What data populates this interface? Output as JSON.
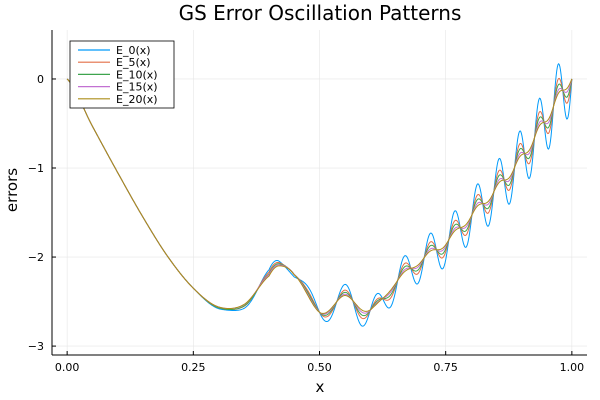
{
  "chart_data": {
    "type": "line",
    "title": "GS Error Oscillation Patterns",
    "xlabel": "x",
    "ylabel": "errors",
    "xlim": [
      -0.03,
      1.03
    ],
    "ylim": [
      -3.1,
      0.55
    ],
    "xticks": [
      0.0,
      0.25,
      0.5,
      0.75,
      1.0
    ],
    "xtick_labels": [
      "0.00",
      "0.25",
      "0.50",
      "0.75",
      "1.00"
    ],
    "yticks": [
      -3,
      -2,
      -1,
      0
    ],
    "ytick_labels": [
      "−3",
      "−2",
      "−1",
      "0"
    ],
    "grid": true,
    "legend_position": "top-left",
    "x": [
      0.0,
      0.05,
      0.1,
      0.15,
      0.2,
      0.25,
      0.3,
      0.35,
      0.4,
      0.42,
      0.45,
      0.5,
      0.55,
      0.6,
      0.65,
      0.7,
      0.75,
      0.8,
      0.85,
      0.9,
      0.95,
      1.0
    ],
    "series": [
      {
        "name": "E_0(x)",
        "color": "#009AFA",
        "smooth": [
          0.0,
          -0.53,
          -1.05,
          -1.55,
          -2.0,
          -2.35,
          -2.58,
          -2.55,
          -2.2,
          -2.06,
          -2.15,
          -2.62,
          -2.45,
          -2.65,
          -2.3,
          -2.05,
          -1.85,
          -1.55,
          -1.25,
          -0.9,
          -0.45,
          0.0
        ],
        "amp": 0.4
      },
      {
        "name": "E_5(x)",
        "color": "#E36F47",
        "smooth": [
          0.0,
          -0.53,
          -1.05,
          -1.55,
          -2.0,
          -2.35,
          -2.57,
          -2.54,
          -2.2,
          -2.07,
          -2.16,
          -2.62,
          -2.45,
          -2.63,
          -2.29,
          -2.04,
          -1.84,
          -1.54,
          -1.24,
          -0.89,
          -0.44,
          0.0
        ],
        "amp": 0.22
      },
      {
        "name": "E_10(x)",
        "color": "#3EA44E",
        "smooth": [
          0.0,
          -0.53,
          -1.05,
          -1.55,
          -2.0,
          -2.35,
          -2.57,
          -2.54,
          -2.21,
          -2.08,
          -2.17,
          -2.62,
          -2.45,
          -2.62,
          -2.29,
          -2.04,
          -1.84,
          -1.54,
          -1.24,
          -0.89,
          -0.44,
          0.0
        ],
        "amp": 0.15
      },
      {
        "name": "E_15(x)",
        "color": "#C271D2",
        "smooth": [
          0.0,
          -0.53,
          -1.05,
          -1.55,
          -2.0,
          -2.35,
          -2.56,
          -2.53,
          -2.21,
          -2.09,
          -2.18,
          -2.62,
          -2.45,
          -2.61,
          -2.29,
          -2.04,
          -1.84,
          -1.54,
          -1.24,
          -0.89,
          -0.44,
          0.0
        ],
        "amp": 0.09
      },
      {
        "name": "E_20(x)",
        "color": "#AC8D18",
        "smooth": [
          0.0,
          -0.53,
          -1.05,
          -1.55,
          -2.0,
          -2.35,
          -2.56,
          -2.53,
          -2.22,
          -2.1,
          -2.19,
          -2.62,
          -2.45,
          -2.6,
          -2.29,
          -2.04,
          -1.84,
          -1.54,
          -1.24,
          -0.89,
          -0.44,
          0.0
        ],
        "amp": 0.05
      }
    ]
  }
}
